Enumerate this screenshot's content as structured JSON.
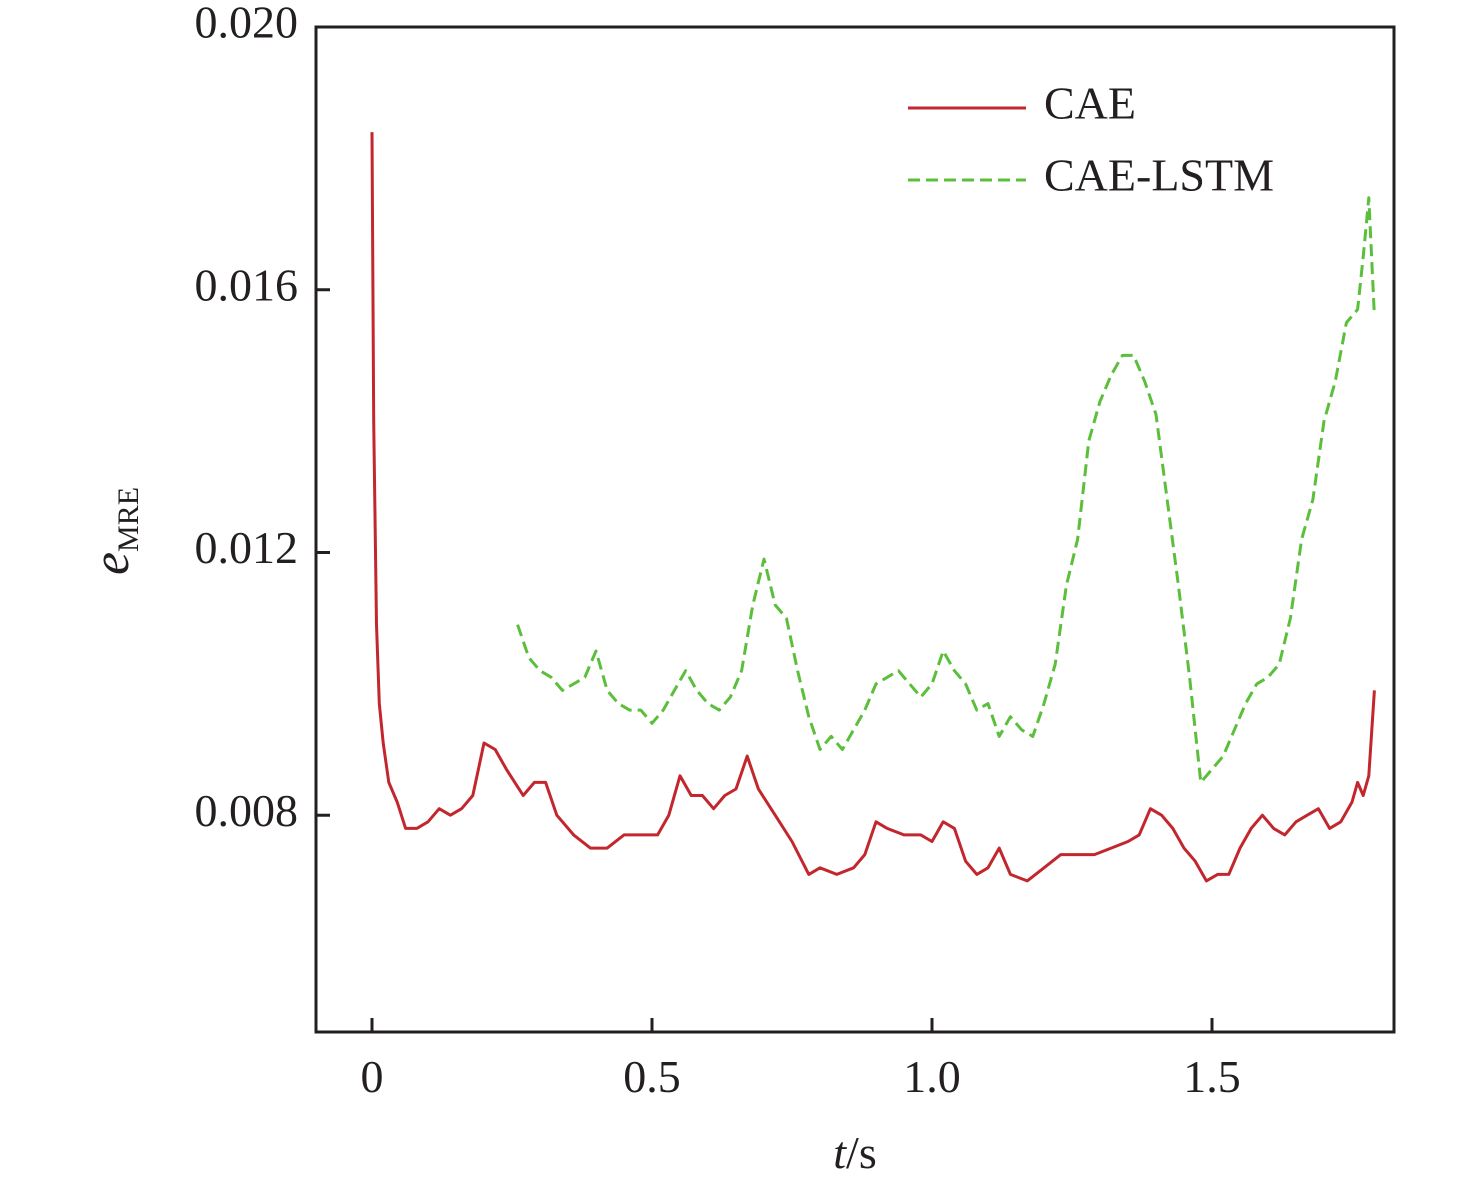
{
  "chart_data": {
    "type": "line",
    "xlabel": {
      "italic": "t",
      "rest": "/s"
    },
    "ylabel": {
      "main": "e",
      "sub": "MRE"
    },
    "xlim": [
      -0.1,
      1.825
    ],
    "ylim": [
      0.0047,
      0.02
    ],
    "xticks": [
      {
        "value": 0,
        "label": "0"
      },
      {
        "value": 0.5,
        "label": "0.5"
      },
      {
        "value": 1.0,
        "label": "1.0"
      },
      {
        "value": 1.5,
        "label": "1.5"
      }
    ],
    "yticks": [
      {
        "value": 0.008,
        "label": "0.008"
      },
      {
        "value": 0.012,
        "label": "0.012"
      },
      {
        "value": 0.016,
        "label": "0.016"
      },
      {
        "value": 0.02,
        "label": "0.020"
      }
    ],
    "grid": false,
    "legend_position": "top-right",
    "series": [
      {
        "name": "CAE",
        "color": "#c1272d",
        "style": "solid",
        "x": [
          0,
          0.003,
          0.008,
          0.013,
          0.02,
          0.03,
          0.045,
          0.06,
          0.08,
          0.1,
          0.12,
          0.14,
          0.16,
          0.18,
          0.2,
          0.22,
          0.24,
          0.27,
          0.29,
          0.31,
          0.33,
          0.36,
          0.39,
          0.42,
          0.45,
          0.48,
          0.51,
          0.53,
          0.55,
          0.57,
          0.59,
          0.61,
          0.63,
          0.65,
          0.67,
          0.69,
          0.72,
          0.75,
          0.78,
          0.8,
          0.83,
          0.86,
          0.88,
          0.9,
          0.92,
          0.95,
          0.98,
          1.0,
          1.02,
          1.04,
          1.06,
          1.08,
          1.1,
          1.12,
          1.14,
          1.17,
          1.2,
          1.23,
          1.26,
          1.29,
          1.32,
          1.35,
          1.37,
          1.39,
          1.41,
          1.43,
          1.45,
          1.47,
          1.49,
          1.51,
          1.53,
          1.55,
          1.57,
          1.59,
          1.61,
          1.63,
          1.65,
          1.67,
          1.69,
          1.71,
          1.73,
          1.75,
          1.76,
          1.77,
          1.78,
          1.79
        ],
        "values": [
          0.0184,
          0.014,
          0.0109,
          0.0097,
          0.0091,
          0.0085,
          0.0082,
          0.0078,
          0.0078,
          0.0079,
          0.0081,
          0.008,
          0.0081,
          0.0083,
          0.0091,
          0.009,
          0.0087,
          0.0083,
          0.0085,
          0.0085,
          0.008,
          0.0077,
          0.0075,
          0.0075,
          0.0077,
          0.0077,
          0.0077,
          0.008,
          0.0086,
          0.0083,
          0.0083,
          0.0081,
          0.0083,
          0.0084,
          0.0089,
          0.0084,
          0.008,
          0.0076,
          0.0071,
          0.0072,
          0.0071,
          0.0072,
          0.0074,
          0.0079,
          0.0078,
          0.0077,
          0.0077,
          0.0076,
          0.0079,
          0.0078,
          0.0073,
          0.0071,
          0.0072,
          0.0075,
          0.0071,
          0.007,
          0.0072,
          0.0074,
          0.0074,
          0.0074,
          0.0075,
          0.0076,
          0.0077,
          0.0081,
          0.008,
          0.0078,
          0.0075,
          0.0073,
          0.007,
          0.0071,
          0.0071,
          0.0075,
          0.0078,
          0.008,
          0.0078,
          0.0077,
          0.0079,
          0.008,
          0.0081,
          0.0078,
          0.0079,
          0.0082,
          0.0085,
          0.0083,
          0.0086,
          0.0099
        ]
      },
      {
        "name": "CAE-LSTM",
        "color": "#5bbf3c",
        "style": "dashed",
        "x": [
          0.26,
          0.28,
          0.3,
          0.32,
          0.34,
          0.36,
          0.38,
          0.4,
          0.42,
          0.44,
          0.46,
          0.48,
          0.5,
          0.52,
          0.54,
          0.56,
          0.58,
          0.6,
          0.62,
          0.64,
          0.66,
          0.68,
          0.7,
          0.72,
          0.74,
          0.76,
          0.78,
          0.8,
          0.82,
          0.84,
          0.86,
          0.88,
          0.9,
          0.92,
          0.94,
          0.96,
          0.98,
          1.0,
          1.02,
          1.04,
          1.06,
          1.08,
          1.1,
          1.12,
          1.14,
          1.16,
          1.18,
          1.2,
          1.22,
          1.24,
          1.26,
          1.28,
          1.3,
          1.32,
          1.34,
          1.36,
          1.38,
          1.4,
          1.42,
          1.44,
          1.46,
          1.48,
          1.5,
          1.52,
          1.54,
          1.56,
          1.58,
          1.6,
          1.62,
          1.64,
          1.66,
          1.68,
          1.7,
          1.72,
          1.74,
          1.76,
          1.77,
          1.78,
          1.79
        ],
        "values": [
          0.0109,
          0.0104,
          0.0102,
          0.0101,
          0.0099,
          0.01,
          0.0101,
          0.0105,
          0.0099,
          0.0097,
          0.0096,
          0.0096,
          0.0094,
          0.0096,
          0.0099,
          0.0102,
          0.0099,
          0.0097,
          0.0096,
          0.0098,
          0.0102,
          0.0112,
          0.0119,
          0.0112,
          0.011,
          0.0102,
          0.0095,
          0.009,
          0.0092,
          0.009,
          0.0093,
          0.0096,
          0.01,
          0.0101,
          0.0102,
          0.01,
          0.0098,
          0.01,
          0.0105,
          0.0102,
          0.01,
          0.0096,
          0.0097,
          0.0092,
          0.0095,
          0.0093,
          0.0092,
          0.0097,
          0.0103,
          0.0115,
          0.0122,
          0.0137,
          0.0143,
          0.0147,
          0.015,
          0.015,
          0.0146,
          0.0141,
          0.0128,
          0.0115,
          0.0101,
          0.0085,
          0.0087,
          0.0089,
          0.0093,
          0.0097,
          0.01,
          0.0101,
          0.0103,
          0.011,
          0.0122,
          0.0128,
          0.014,
          0.0146,
          0.0155,
          0.0157,
          0.0165,
          0.0174,
          0.0156
        ]
      }
    ]
  }
}
